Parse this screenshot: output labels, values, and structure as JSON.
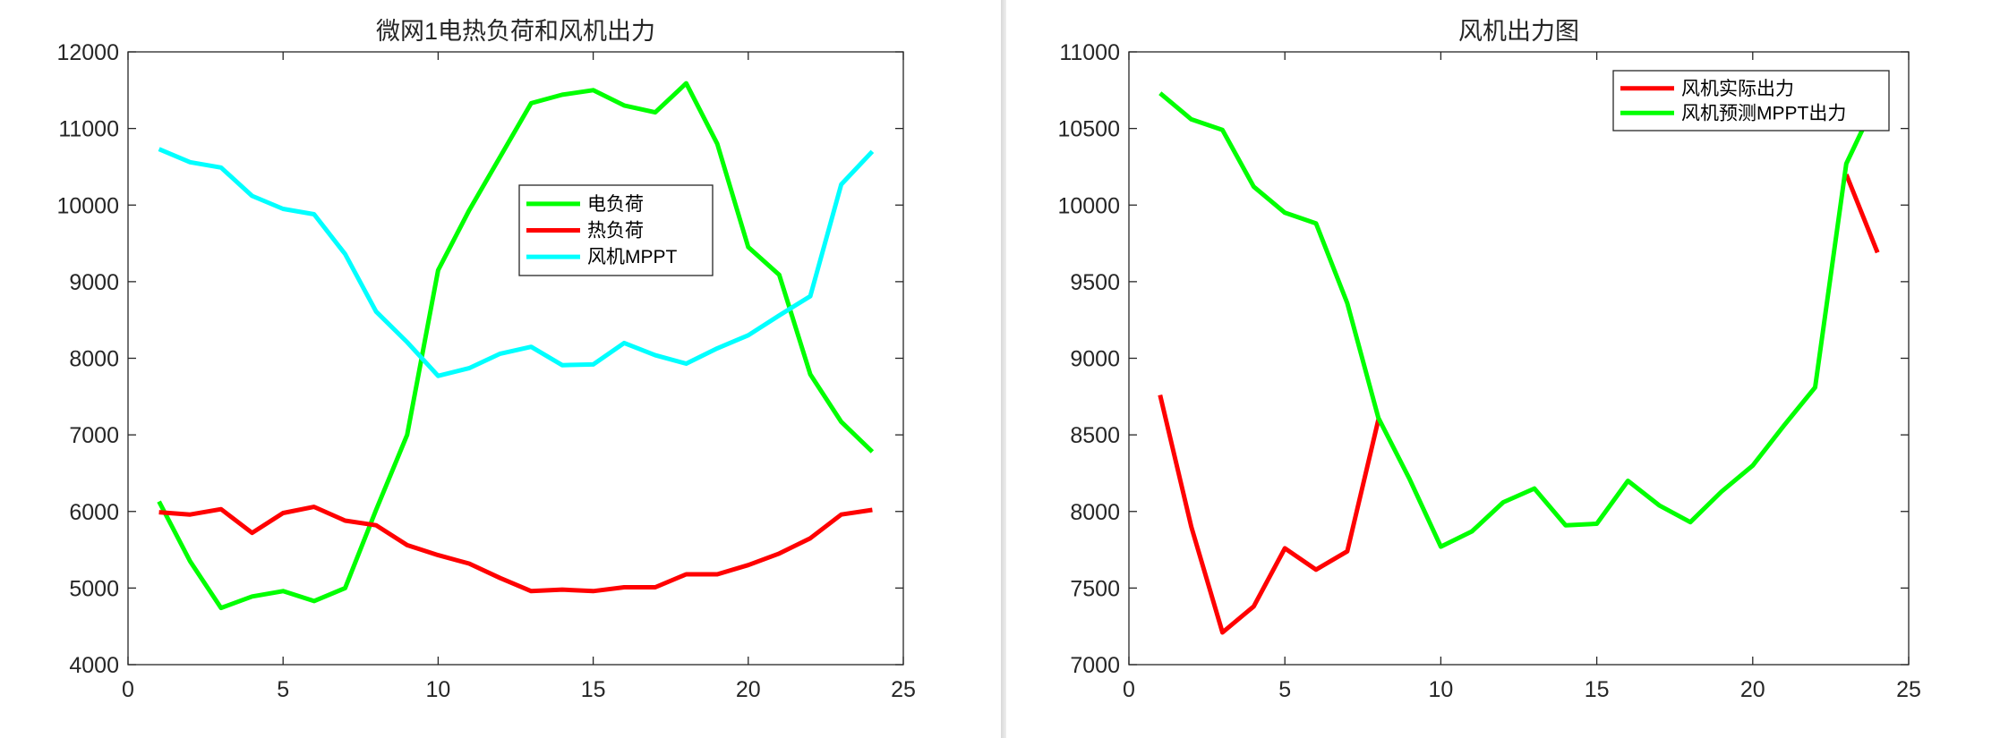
{
  "chart_data": [
    {
      "type": "line",
      "title": "微网1电热负荷和风机出力",
      "xlabel": "",
      "ylabel": "",
      "xlim": [
        0,
        25
      ],
      "ylim": [
        4000,
        12000
      ],
      "xticks": [
        "0",
        "5",
        "10",
        "15",
        "20",
        "25"
      ],
      "yticks": [
        "4000",
        "5000",
        "6000",
        "7000",
        "8000",
        "9000",
        "10000",
        "11000",
        "12000"
      ],
      "x": [
        1,
        2,
        3,
        4,
        5,
        6,
        7,
        8,
        9,
        10,
        11,
        12,
        13,
        14,
        15,
        16,
        17,
        18,
        19,
        20,
        21,
        22,
        23,
        24
      ],
      "legend_position": "upper-center",
      "series": [
        {
          "name": "电负荷",
          "color": "#00ff00",
          "values": [
            6130,
            5350,
            4740,
            4890,
            4960,
            4830,
            5000,
            6020,
            7000,
            9150,
            9930,
            10630,
            11330,
            11440,
            11500,
            11300,
            11210,
            11590,
            10800,
            9450,
            9090,
            7790,
            7170,
            6780
          ]
        },
        {
          "name": "热负荷",
          "color": "#ff0000",
          "values": [
            5990,
            5960,
            6030,
            5720,
            5980,
            6060,
            5880,
            5820,
            5560,
            5430,
            5320,
            5130,
            4960,
            4980,
            4960,
            5010,
            5010,
            5180,
            5180,
            5300,
            5450,
            5650,
            5960,
            6020
          ]
        },
        {
          "name": "风机MPPT",
          "color": "#00ffff",
          "values": [
            10730,
            10560,
            10490,
            10120,
            9950,
            9880,
            9360,
            8610,
            8210,
            7770,
            7870,
            8060,
            8150,
            7910,
            7920,
            8200,
            8040,
            7930,
            8130,
            8300,
            8560,
            8810,
            10270,
            10700
          ]
        }
      ]
    },
    {
      "type": "line",
      "title": "风机出力图",
      "xlabel": "",
      "ylabel": "",
      "xlim": [
        0,
        25
      ],
      "ylim": [
        7000,
        11000
      ],
      "xticks": [
        "0",
        "5",
        "10",
        "15",
        "20",
        "25"
      ],
      "yticks": [
        "7000",
        "7500",
        "8000",
        "8500",
        "9000",
        "9500",
        "10000",
        "10500",
        "11000"
      ],
      "x": [
        1,
        2,
        3,
        4,
        5,
        6,
        7,
        8,
        9,
        10,
        11,
        12,
        13,
        14,
        15,
        16,
        17,
        18,
        19,
        20,
        21,
        22,
        23,
        24
      ],
      "legend_position": "top-right",
      "series": [
        {
          "name": "风机实际出力",
          "color": "#ff0000",
          "values": [
            8760,
            7900,
            7210,
            7380,
            7760,
            7620,
            7740,
            8600,
            null,
            null,
            null,
            null,
            null,
            null,
            null,
            null,
            null,
            null,
            null,
            null,
            null,
            null,
            10200,
            9690
          ]
        },
        {
          "name": "风机预测MPPT出力",
          "color": "#00ff00",
          "values": [
            10730,
            10560,
            10490,
            10120,
            9950,
            9880,
            9360,
            8610,
            8210,
            7770,
            7870,
            8060,
            8150,
            7910,
            7920,
            8200,
            8040,
            7930,
            8130,
            8300,
            8560,
            8810,
            10270,
            10700
          ]
        }
      ]
    }
  ]
}
